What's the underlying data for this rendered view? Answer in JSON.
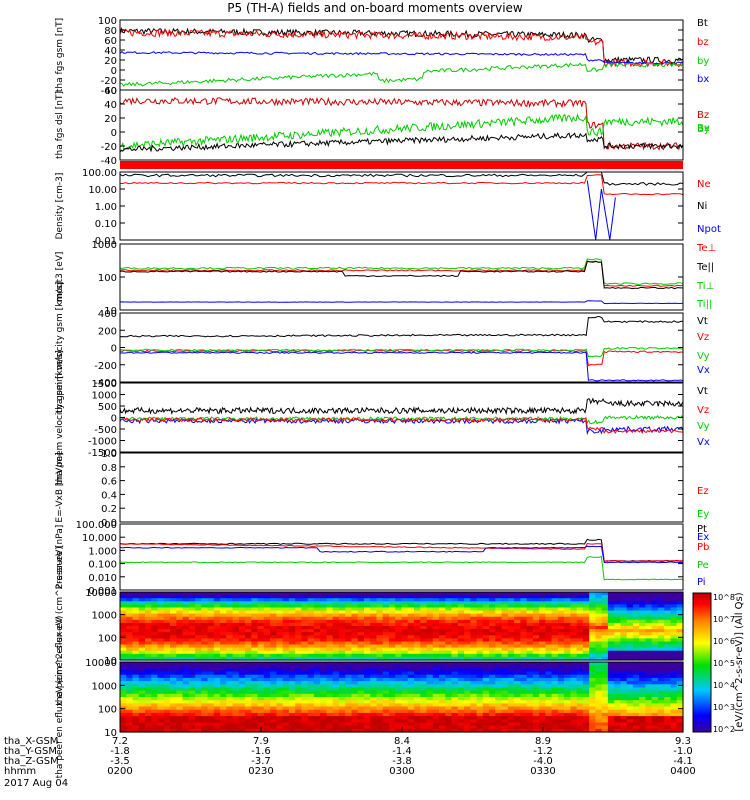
{
  "title": "P5 (TH-A) fields and on-board moments overview",
  "date_label": "2017 Aug 04",
  "colorbar": {
    "label": "[eV/(cm^2-s-sr-eV)] (All Qs)",
    "ticks": [
      "10^8",
      "10^7",
      "10^6",
      "10^5",
      "10^4",
      "10^3",
      "10^2"
    ]
  },
  "footer": {
    "rows": [
      {
        "label": "tha_X-GSM",
        "values": [
          "7.2",
          "7.9",
          "8.4",
          "8.9",
          "9.3"
        ]
      },
      {
        "label": "tha_Y-GSM",
        "values": [
          "-1.8",
          "-1.6",
          "-1.4",
          "-1.2",
          "-1.0"
        ]
      },
      {
        "label": "tha_Z-GSM",
        "values": [
          "-3.5",
          "-3.7",
          "-3.8",
          "-4.0",
          "-4.1"
        ]
      },
      {
        "label": "hhmm",
        "values": [
          "0200",
          "0230",
          "0300",
          "0330",
          "0400"
        ]
      }
    ]
  },
  "chart_data": [
    {
      "type": "line",
      "ylabel": "tha fgs gsm [nT]",
      "ylim": [
        -40,
        100
      ],
      "ticks": [
        "100",
        "80",
        "60",
        "40",
        "20",
        "0",
        "-20",
        "-40"
      ],
      "legend": [
        {
          "name": "Bt",
          "color": "#000000"
        },
        {
          "name": "bz",
          "color": "#ff0000"
        },
        {
          "name": "by",
          "color": "#00cc00"
        },
        {
          "name": "bx",
          "color": "#0000ff"
        }
      ]
    },
    {
      "type": "line",
      "ylabel": "tha fgs dsl [nT]",
      "ylim": [
        -40,
        60
      ],
      "ticks": [
        "60",
        "40",
        "20",
        "0",
        "-20",
        "-40"
      ],
      "legend": [
        {
          "name": "Bz",
          "color": "#cc0000"
        },
        {
          "name": "Bx",
          "color": "#00cc00"
        },
        {
          "name": "By",
          "color": "#00cc00"
        }
      ]
    },
    {
      "type": "line",
      "ylabel": "Density [cm-3]",
      "ylim": [
        0.01,
        100
      ],
      "ticks": [
        "100.00",
        "10.00",
        "1.00",
        "0.10",
        "0.01"
      ],
      "legend": [
        {
          "name": "Ne",
          "color": "#ff0000"
        },
        {
          "name": "Ni",
          "color": "#000000"
        },
        {
          "name": "Npot",
          "color": "#0000ff"
        }
      ]
    },
    {
      "type": "line",
      "ylabel": "moqt3 [eV]",
      "ylim": [
        1,
        1000
      ],
      "ticks": [
        "1000",
        "100",
        "10"
      ],
      "legend": [
        {
          "name": "Te⊥",
          "color": "#ff0000"
        },
        {
          "name": "Te||",
          "color": "#000000"
        },
        {
          "name": "Ti⊥",
          "color": "#00cc00"
        },
        {
          "name": "Ti||",
          "color": "#00cc00"
        }
      ]
    },
    {
      "type": "line",
      "ylabel": "tha peim velocity gsm [km/s]",
      "ylim": [
        -400,
        400
      ],
      "ticks": [
        "400",
        "200",
        "0",
        "-200",
        "-400"
      ],
      "legend": [
        {
          "name": "Vt",
          "color": "#000000"
        },
        {
          "name": "Vz",
          "color": "#ff0000"
        },
        {
          "name": "Vy",
          "color": "#00cc00"
        },
        {
          "name": "Vx",
          "color": "#0000ff"
        }
      ]
    },
    {
      "type": "line",
      "ylabel": "tha peem velocity gsm [km/s]",
      "ylim": [
        -1500,
        1500
      ],
      "ticks": [
        "1500",
        "1000",
        "500",
        "0",
        "-500",
        "-1000",
        "-1500"
      ],
      "legend": [
        {
          "name": "Vt",
          "color": "#000000"
        },
        {
          "name": "Vz",
          "color": "#ff0000"
        },
        {
          "name": "Vy",
          "color": "#00cc00"
        },
        {
          "name": "Vx",
          "color": "#0000ff"
        }
      ]
    },
    {
      "type": "line",
      "ylabel": "E=-VxB [mV/m]",
      "ylim": [
        0,
        1
      ],
      "ticks": [
        "1.0",
        "0.8",
        "0.6",
        "0.4",
        "0.2",
        "0.0"
      ],
      "legend": [
        {
          "name": "Ez",
          "color": "#ff0000"
        },
        {
          "name": "Ey",
          "color": "#00cc00"
        },
        {
          "name": "Ex",
          "color": "#0000ff"
        }
      ]
    },
    {
      "type": "line",
      "ylabel": "Pressure [nPa]",
      "ylim": [
        0.001,
        100
      ],
      "ticks": [
        "100.000",
        "10.000",
        "1.000",
        "0.100",
        "0.010",
        "0.001"
      ],
      "legend": [
        {
          "name": "Pt",
          "color": "#000000"
        },
        {
          "name": "Pb",
          "color": "#ff0000"
        },
        {
          "name": "Pe",
          "color": "#00cc00"
        },
        {
          "name": "Pi",
          "color": "#0000ff"
        }
      ]
    },
    {
      "type": "heatmap",
      "ylabel": "tha peir en eflux eV (cm^2-s-sr-eV)",
      "ylim": [
        5,
        25000
      ],
      "ticks": [
        "10000",
        "1000",
        "100",
        "10"
      ],
      "legend": []
    },
    {
      "type": "heatmap",
      "ylabel": "tha peer en eflux eV (cm^2-s-sr-eV)",
      "ylim": [
        5,
        25000
      ],
      "ticks": [
        "10000",
        "1000",
        "100",
        "10"
      ],
      "legend": []
    }
  ]
}
